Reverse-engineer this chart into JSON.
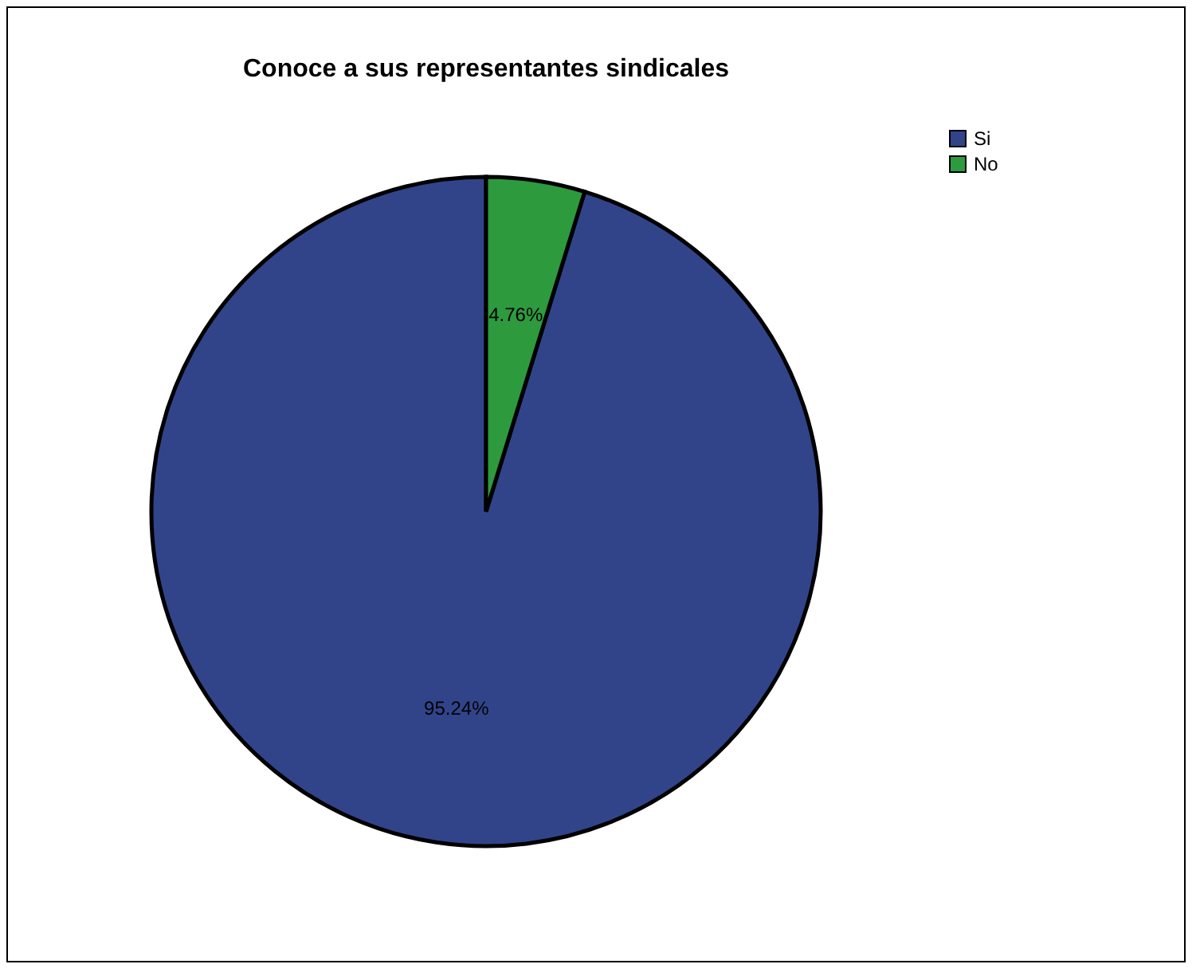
{
  "chart_data": {
    "type": "pie",
    "title": "Conoce a sus representantes sindicales",
    "categories": [
      "Si",
      "No"
    ],
    "values": [
      95.24,
      4.76
    ],
    "colors": [
      "#31448a",
      "#2e9a3e"
    ],
    "value_labels": [
      "95.24%",
      "4.76%"
    ],
    "legend": "top right"
  }
}
